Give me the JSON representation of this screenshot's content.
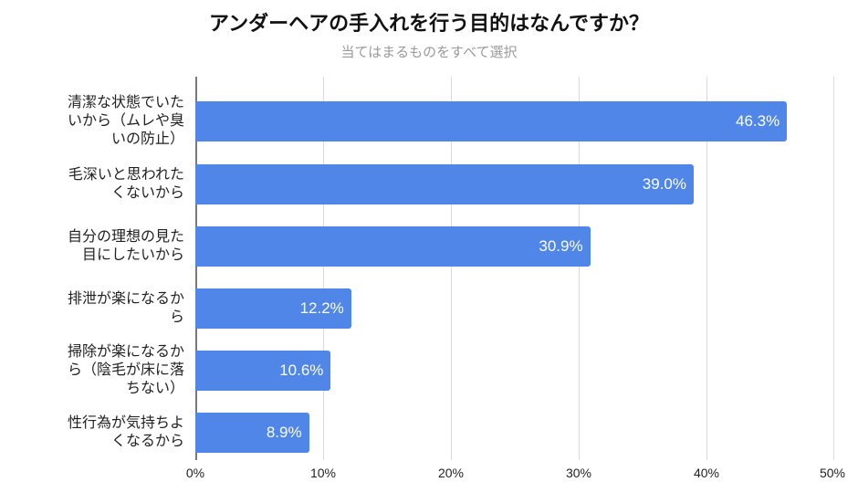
{
  "header": {
    "title": "アンダーヘアの手入れを行う目的はなんですか？",
    "subtitle": "当てはまるものをすべて選択"
  },
  "axis": {
    "ticks": [
      "0%",
      "10%",
      "20%",
      "30%",
      "40%",
      "50%"
    ]
  },
  "bars": [
    {
      "label": "清潔な状態でいたいから（ムレや臭いの防止）",
      "lines": [
        "清潔な状態でいた",
        "いから（ムレや臭",
        "いの防止）"
      ],
      "value": 46.3,
      "display": "46.3%"
    },
    {
      "label": "毛深いと思われたくないから",
      "lines": [
        "毛深いと思われた",
        "くないから"
      ],
      "value": 39.0,
      "display": "39.0%"
    },
    {
      "label": "自分の理想の見た目にしたいから",
      "lines": [
        "自分の理想の見た",
        "目にしたいから"
      ],
      "value": 30.9,
      "display": "30.9%"
    },
    {
      "label": "排泄が楽になるから",
      "lines": [
        "排泄が楽になるか",
        "ら"
      ],
      "value": 12.2,
      "display": "12.2%"
    },
    {
      "label": "掃除が楽になるから（陰毛が床に落ちない）",
      "lines": [
        "掃除が楽になるか",
        "ら（陰毛が床に落",
        "ちない）"
      ],
      "value": 10.6,
      "display": "10.6%"
    },
    {
      "label": "性行為が気持ちよくなるから",
      "lines": [
        "性行為が気持ちよ",
        "くなるから"
      ],
      "value": 8.9,
      "display": "8.9%"
    }
  ],
  "colors": {
    "bar": "#4f86e8",
    "gridline": "#d9d9d9",
    "axis": "#7a7a7a",
    "subtitle": "#9a9a9a"
  },
  "chart_data": {
    "type": "bar",
    "orientation": "horizontal",
    "title": "アンダーヘアの手入れを行う目的はなんですか？",
    "subtitle": "当てはまるものをすべて選択",
    "categories": [
      "清潔な状態でいたいから（ムレや臭いの防止）",
      "毛深いと思われたくないから",
      "自分の理想の見た目にしたいから",
      "排泄が楽になるから",
      "掃除が楽になるから（陰毛が床に落ちない）",
      "性行為が気持ちよくなるから"
    ],
    "values": [
      46.3,
      39.0,
      30.9,
      12.2,
      10.6,
      8.9
    ],
    "unit": "%",
    "xlabel": "",
    "ylabel": "",
    "xlim": [
      0,
      50
    ],
    "x_ticks": [
      "0%",
      "10%",
      "20%",
      "30%",
      "40%",
      "50%"
    ],
    "grid": true,
    "legend": "none",
    "data_labels": true
  }
}
